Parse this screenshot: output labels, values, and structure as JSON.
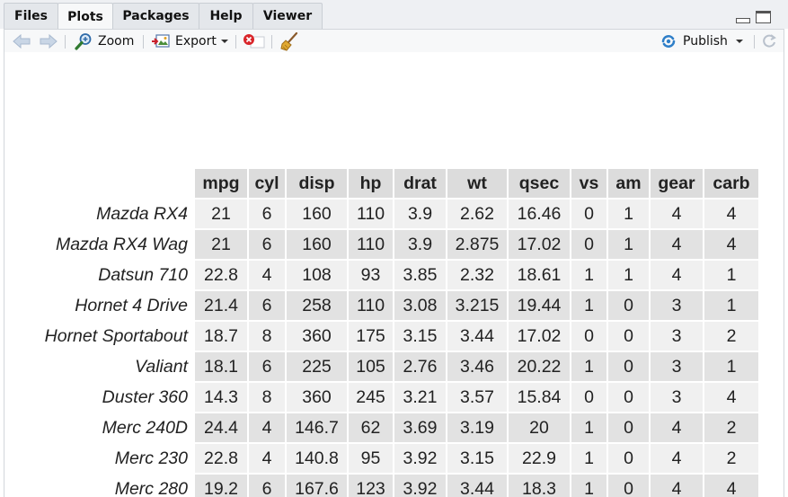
{
  "tabs": [
    {
      "label": "Files"
    },
    {
      "label": "Plots"
    },
    {
      "label": "Packages"
    },
    {
      "label": "Help"
    },
    {
      "label": "Viewer"
    }
  ],
  "active_tab": "Plots",
  "toolbar": {
    "zoom_label": "Zoom",
    "export_label": "Export",
    "publish_label": "Publish"
  },
  "icons": {
    "back": "arrow-left-icon",
    "forward": "arrow-right-icon",
    "zoom": "magnifier-icon",
    "export": "export-image-icon",
    "remove": "remove-plot-icon",
    "clear": "broom-icon",
    "publish": "publish-icon",
    "refresh": "refresh-icon"
  },
  "colors": {
    "header_bg": "#dcdcdc",
    "row_light": "#f0f0f0",
    "row_dark": "#e2e2e2",
    "publish_blue": "#2f7fc8",
    "remove_red": "#d9252a"
  },
  "table": {
    "columns": [
      "mpg",
      "cyl",
      "disp",
      "hp",
      "drat",
      "wt",
      "qsec",
      "vs",
      "am",
      "gear",
      "carb"
    ],
    "rows": [
      {
        "name": "Mazda RX4",
        "values": [
          "21",
          "6",
          "160",
          "110",
          "3.9",
          "2.62",
          "16.46",
          "0",
          "1",
          "4",
          "4"
        ]
      },
      {
        "name": "Mazda RX4 Wag",
        "values": [
          "21",
          "6",
          "160",
          "110",
          "3.9",
          "2.875",
          "17.02",
          "0",
          "1",
          "4",
          "4"
        ]
      },
      {
        "name": "Datsun 710",
        "values": [
          "22.8",
          "4",
          "108",
          "93",
          "3.85",
          "2.32",
          "18.61",
          "1",
          "1",
          "4",
          "1"
        ]
      },
      {
        "name": "Hornet 4 Drive",
        "values": [
          "21.4",
          "6",
          "258",
          "110",
          "3.08",
          "3.215",
          "19.44",
          "1",
          "0",
          "3",
          "1"
        ]
      },
      {
        "name": "Hornet Sportabout",
        "values": [
          "18.7",
          "8",
          "360",
          "175",
          "3.15",
          "3.44",
          "17.02",
          "0",
          "0",
          "3",
          "2"
        ]
      },
      {
        "name": "Valiant",
        "values": [
          "18.1",
          "6",
          "225",
          "105",
          "2.76",
          "3.46",
          "20.22",
          "1",
          "0",
          "3",
          "1"
        ]
      },
      {
        "name": "Duster 360",
        "values": [
          "14.3",
          "8",
          "360",
          "245",
          "3.21",
          "3.57",
          "15.84",
          "0",
          "0",
          "3",
          "4"
        ]
      },
      {
        "name": "Merc 240D",
        "values": [
          "24.4",
          "4",
          "146.7",
          "62",
          "3.69",
          "3.19",
          "20",
          "1",
          "0",
          "4",
          "2"
        ]
      },
      {
        "name": "Merc 230",
        "values": [
          "22.8",
          "4",
          "140.8",
          "95",
          "3.92",
          "3.15",
          "22.9",
          "1",
          "0",
          "4",
          "2"
        ]
      },
      {
        "name": "Merc 280",
        "values": [
          "19.2",
          "6",
          "167.6",
          "123",
          "3.92",
          "3.44",
          "18.3",
          "1",
          "0",
          "4",
          "4"
        ]
      }
    ]
  }
}
